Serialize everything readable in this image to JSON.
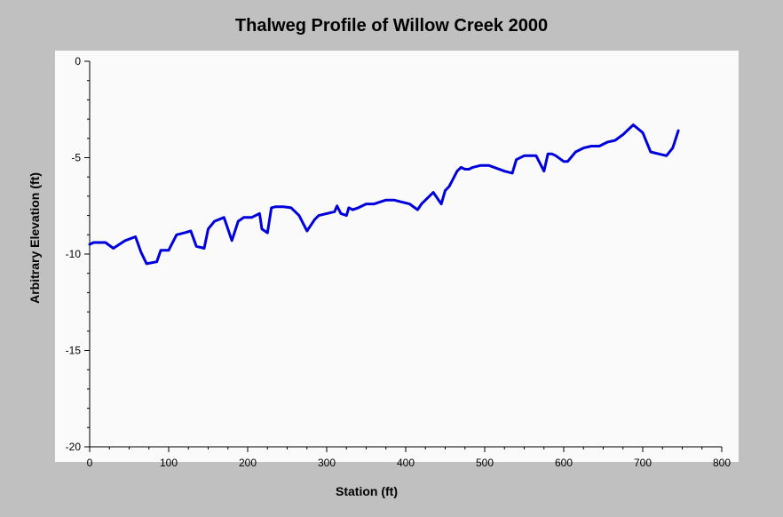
{
  "chart_data": {
    "type": "line",
    "title": "Thalweg Profile of Willow Creek 2000",
    "xlabel": "Station (ft)",
    "ylabel": "Arbitrary Elevation (ft)",
    "xlim": [
      0,
      800
    ],
    "ylim": [
      -20,
      0
    ],
    "x_ticks": [
      0,
      100,
      200,
      300,
      400,
      500,
      600,
      700,
      800
    ],
    "y_ticks": [
      0,
      -5,
      -10,
      -15,
      -20
    ],
    "grid": false,
    "legend": "none",
    "line_color": "#0000dd",
    "series": [
      {
        "x": [
          0,
          5,
          20,
          30,
          45,
          58,
          65,
          72,
          85,
          90,
          100,
          110,
          120,
          128,
          135,
          145,
          150,
          158,
          170,
          180,
          188,
          195,
          205,
          215,
          218,
          225,
          230,
          235,
          245,
          255,
          265,
          275,
          285,
          290,
          300,
          310,
          313,
          318,
          325,
          328,
          333,
          340,
          350,
          360,
          375,
          385,
          395,
          405,
          415,
          420,
          435,
          440,
          445,
          450,
          455,
          460,
          465,
          470,
          475,
          480,
          485,
          495,
          505,
          525,
          535,
          540,
          550,
          565,
          575,
          580,
          585,
          590,
          600,
          605,
          615,
          625,
          635,
          645,
          655,
          665,
          675,
          688,
          700,
          710,
          720,
          730,
          738,
          745
        ],
        "y": [
          -9.5,
          -9.4,
          -9.4,
          -9.7,
          -9.3,
          -9.1,
          -9.9,
          -10.5,
          -10.4,
          -9.8,
          -9.8,
          -9.0,
          -8.9,
          -8.8,
          -9.6,
          -9.7,
          -8.7,
          -8.3,
          -8.1,
          -9.3,
          -8.3,
          -8.1,
          -8.1,
          -7.9,
          -8.7,
          -8.9,
          -7.6,
          -7.55,
          -7.55,
          -7.6,
          -8.0,
          -8.8,
          -8.2,
          -8.0,
          -7.9,
          -7.8,
          -7.5,
          -7.9,
          -8.0,
          -7.6,
          -7.7,
          -7.6,
          -7.4,
          -7.4,
          -7.2,
          -7.2,
          -7.3,
          -7.4,
          -7.7,
          -7.4,
          -6.8,
          -7.1,
          -7.4,
          -6.7,
          -6.5,
          -6.1,
          -5.7,
          -5.5,
          -5.6,
          -5.6,
          -5.5,
          -5.4,
          -5.4,
          -5.7,
          -5.8,
          -5.1,
          -4.9,
          -4.9,
          -5.7,
          -4.8,
          -4.8,
          -4.9,
          -5.2,
          -5.2,
          -4.7,
          -4.5,
          -4.4,
          -4.4,
          -4.2,
          -4.1,
          -3.8,
          -3.3,
          -3.7,
          -4.7,
          -4.8,
          -4.9,
          -4.5,
          -3.6
        ]
      }
    ]
  }
}
